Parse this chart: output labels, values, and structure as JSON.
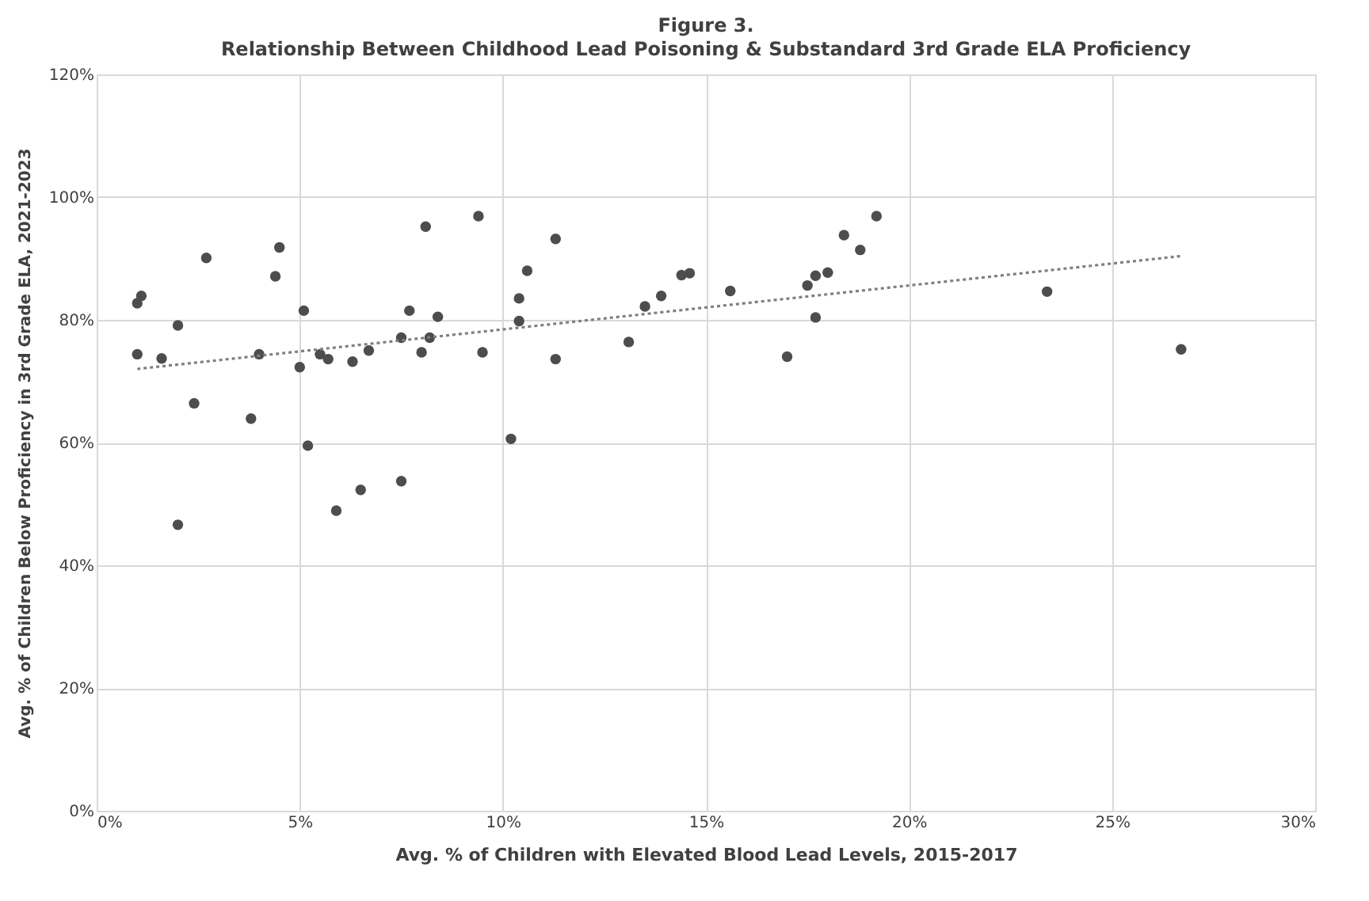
{
  "chart_data": {
    "type": "scatter",
    "title": "Figure 3.",
    "subtitle": "Relationship Between Childhood Lead Poisoning & Substandard 3rd Grade ELA Proficiency",
    "xlabel": "Avg. % of Children with Elevated Blood Lead Levels, 2015-2017",
    "ylabel": "Avg. % of Children Below Proficiency in 3rd Grade ELA, 2021-2023",
    "xlim": [
      0,
      30
    ],
    "ylim": [
      0,
      120
    ],
    "xticks": [
      {
        "value": 0,
        "label": "0%"
      },
      {
        "value": 5,
        "label": "5%"
      },
      {
        "value": 10,
        "label": "10%"
      },
      {
        "value": 15,
        "label": "15%"
      },
      {
        "value": 20,
        "label": "20%"
      },
      {
        "value": 25,
        "label": "25%"
      },
      {
        "value": 30,
        "label": "30%"
      }
    ],
    "yticks": [
      {
        "value": 0,
        "label": "0%"
      },
      {
        "value": 20,
        "label": "20%"
      },
      {
        "value": 40,
        "label": "40%"
      },
      {
        "value": 60,
        "label": "60%"
      },
      {
        "value": 80,
        "label": "80%"
      },
      {
        "value": 100,
        "label": "100%"
      },
      {
        "value": 120,
        "label": "120%"
      }
    ],
    "grid": true,
    "marker": "circle",
    "series": [
      {
        "color": "#4d4d4d",
        "x": [
          1.0,
          1.1,
          1.0,
          1.6,
          2.0,
          2.0,
          2.4,
          2.7,
          3.8,
          4.0,
          4.4,
          4.5,
          5.1,
          5.0,
          5.2,
          5.5,
          5.7,
          5.9,
          6.3,
          6.5,
          6.7,
          7.5,
          7.5,
          7.7,
          8.1,
          8.0,
          8.2,
          8.4,
          9.4,
          9.5,
          10.2,
          10.4,
          10.4,
          10.6,
          11.3,
          11.3,
          13.1,
          13.5,
          13.9,
          14.4,
          14.6,
          15.6,
          17.0,
          17.5,
          17.7,
          17.7,
          18.0,
          18.4,
          18.8,
          19.2,
          23.4,
          26.7
        ],
        "values": [
          74.4,
          83.9,
          82.7,
          73.7,
          79.1,
          46.6,
          66.4,
          90.1,
          63.9,
          74.4,
          87.1,
          91.8,
          81.5,
          72.3,
          59.5,
          74.4,
          73.6,
          48.9,
          73.2,
          52.3,
          75.0,
          77.1,
          53.7,
          81.5,
          95.2,
          74.7,
          77.1,
          80.5,
          96.9,
          74.7,
          60.6,
          83.5,
          79.8,
          88.0,
          93.2,
          73.6,
          76.4,
          82.2,
          83.9,
          87.3,
          87.6,
          84.7,
          74.0,
          85.6,
          87.2,
          80.4,
          87.7,
          93.8,
          91.4,
          96.9,
          84.6,
          75.2
        ]
      },
      {
        "type": "line",
        "marker": "none",
        "color": "#7f7f7f",
        "line_style": "dotted",
        "x": [
          1.0,
          26.7
        ],
        "values": [
          72.0,
          90.4
        ]
      }
    ]
  }
}
